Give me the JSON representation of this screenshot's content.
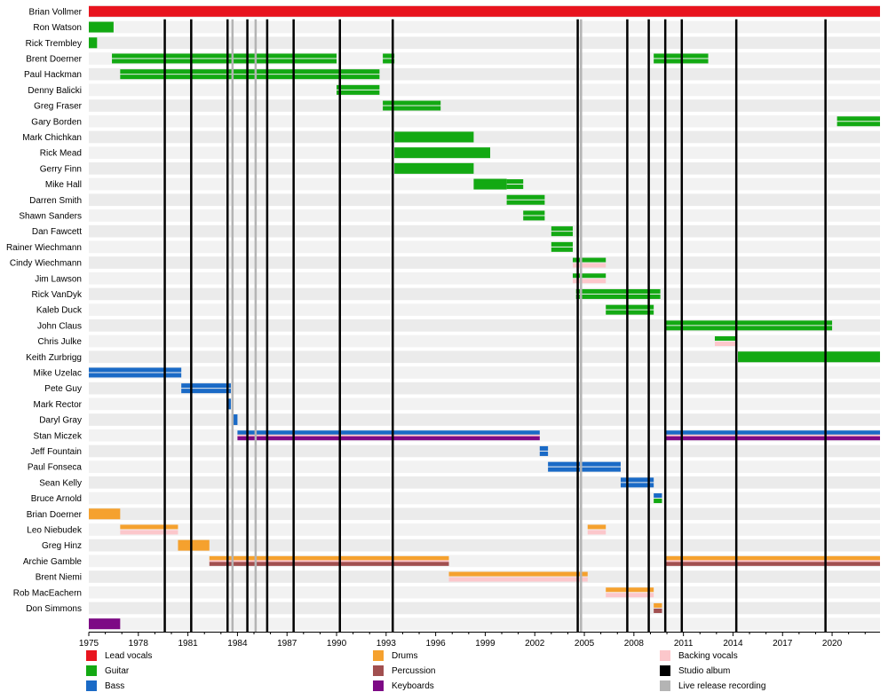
{
  "chart_data": {
    "type": "timeline",
    "x_axis": {
      "start": 1975,
      "end": 2022.9,
      "tick_start": 1975,
      "tick_step": 3,
      "tick_end": 2020
    },
    "roles": {
      "vocals": {
        "label": "Lead vocals",
        "color": "#e8141e"
      },
      "guitar": {
        "label": "Guitar",
        "color": "#13a913"
      },
      "bass": {
        "label": "Bass",
        "color": "#1a6ac6"
      },
      "drums": {
        "label": "Drums",
        "color": "#f5a12e"
      },
      "percussion": {
        "label": "Percussion",
        "color": "#a14f4f"
      },
      "keyboards": {
        "label": "Keyboards",
        "color": "#7d0a85"
      },
      "backing": {
        "label": "Backing vocals",
        "color": "#fcc7cb"
      },
      "studio": {
        "label": "Studio album",
        "color": "#000000"
      },
      "live": {
        "label": "Live release recording",
        "color": "#b4b4b4"
      }
    },
    "legend_columns": [
      [
        "vocals",
        "guitar",
        "bass"
      ],
      [
        "drums",
        "percussion",
        "keyboards"
      ],
      [
        "backing",
        "studio",
        "live"
      ]
    ],
    "studio_albums": [
      1979.6,
      1981.2,
      1983.4,
      1984.6,
      1985.8,
      1987.4,
      1990.2,
      1993.4,
      2004.6,
      2007.6,
      2008.9,
      2009.9,
      2010.9,
      2014.2,
      2019.6
    ],
    "live_recordings": [
      1983.7,
      1985.1,
      2004.8
    ],
    "members": [
      {
        "name": "Brian Vollmer",
        "periods": [
          {
            "start": 1975,
            "end": 2022.9,
            "role": "vocals"
          }
        ]
      },
      {
        "name": "Ron Watson",
        "periods": [
          {
            "start": 1975,
            "end": 1976.5,
            "role": "guitar"
          }
        ]
      },
      {
        "name": "Rick Trembley",
        "periods": [
          {
            "start": 1975,
            "end": 1975.5,
            "role": "guitar"
          }
        ]
      },
      {
        "name": "Brent Doerner",
        "periods": [
          {
            "start": 1976.4,
            "end": 1990,
            "role": "guitar",
            "secondary": "guitar"
          },
          {
            "start": 1992.8,
            "end": 1993.5,
            "role": "guitar",
            "secondary": "guitar"
          },
          {
            "start": 2009.2,
            "end": 2012.5,
            "role": "guitar",
            "secondary": "guitar"
          }
        ]
      },
      {
        "name": "Paul Hackman",
        "periods": [
          {
            "start": 1976.9,
            "end": 1992.6,
            "role": "guitar",
            "secondary": "guitar"
          }
        ]
      },
      {
        "name": "Denny Balicki",
        "periods": [
          {
            "start": 1990,
            "end": 1992.6,
            "role": "guitar",
            "secondary": "guitar"
          }
        ]
      },
      {
        "name": "Greg Fraser",
        "periods": [
          {
            "start": 1992.8,
            "end": 1996.3,
            "role": "guitar",
            "secondary": "guitar"
          }
        ]
      },
      {
        "name": "Gary Borden",
        "periods": [
          {
            "start": 2020.3,
            "end": 2022.9,
            "role": "guitar",
            "secondary": "guitar"
          }
        ]
      },
      {
        "name": "Mark Chichkan",
        "periods": [
          {
            "start": 1993.5,
            "end": 1998.3,
            "role": "guitar"
          }
        ]
      },
      {
        "name": "Rick Mead",
        "periods": [
          {
            "start": 1993.5,
            "end": 1999.3,
            "role": "guitar"
          }
        ]
      },
      {
        "name": "Gerry Finn",
        "periods": [
          {
            "start": 1993.5,
            "end": 1998.3,
            "role": "guitar"
          }
        ]
      },
      {
        "name": "Mike Hall",
        "periods": [
          {
            "start": 1998.3,
            "end": 2000.3,
            "role": "guitar"
          },
          {
            "start": 2000.3,
            "end": 2001.3,
            "role": "guitar",
            "secondary": "guitar"
          }
        ]
      },
      {
        "name": "Darren Smith",
        "periods": [
          {
            "start": 2000.3,
            "end": 2002.6,
            "role": "guitar",
            "secondary": "guitar"
          }
        ]
      },
      {
        "name": "Shawn Sanders",
        "periods": [
          {
            "start": 2001.3,
            "end": 2002.6,
            "role": "guitar",
            "secondary": "guitar"
          }
        ]
      },
      {
        "name": "Dan Fawcett",
        "periods": [
          {
            "start": 2003,
            "end": 2004.3,
            "role": "guitar",
            "secondary": "guitar"
          }
        ]
      },
      {
        "name": "Rainer Wiechmann",
        "periods": [
          {
            "start": 2003,
            "end": 2004.3,
            "role": "guitar",
            "secondary": "guitar"
          }
        ]
      },
      {
        "name": "Cindy Wiechmann",
        "periods": [
          {
            "start": 2004.3,
            "end": 2006.3,
            "role": "guitar",
            "secondary": "backing"
          }
        ]
      },
      {
        "name": "Jim Lawson",
        "periods": [
          {
            "start": 2004.3,
            "end": 2006.3,
            "role": "guitar",
            "secondary": "backing"
          }
        ]
      },
      {
        "name": "Rick VanDyk",
        "periods": [
          {
            "start": 2004.5,
            "end": 2009.6,
            "role": "guitar",
            "secondary": "guitar"
          }
        ]
      },
      {
        "name": "Kaleb Duck",
        "periods": [
          {
            "start": 2006.3,
            "end": 2009.2,
            "role": "guitar",
            "secondary": "guitar"
          }
        ]
      },
      {
        "name": "John Claus",
        "periods": [
          {
            "start": 2009.9,
            "end": 2020,
            "role": "guitar",
            "secondary": "guitar"
          }
        ]
      },
      {
        "name": "Chris Julke",
        "periods": [
          {
            "start": 2012.9,
            "end": 2014.2,
            "role": "guitar",
            "secondary": "backing"
          }
        ]
      },
      {
        "name": "Keith Zurbrigg",
        "periods": [
          {
            "start": 2014.3,
            "end": 2022.9,
            "role": "guitar"
          }
        ]
      },
      {
        "name": "Mike Uzelac",
        "periods": [
          {
            "start": 1975,
            "end": 1980.6,
            "role": "bass",
            "secondary": "bass"
          }
        ]
      },
      {
        "name": "Pete Guy",
        "periods": [
          {
            "start": 1980.6,
            "end": 1983.6,
            "role": "bass",
            "secondary": "bass"
          }
        ]
      },
      {
        "name": "Mark Rector",
        "periods": [
          {
            "start": 1983.4,
            "end": 1983.6,
            "role": "bass"
          }
        ]
      },
      {
        "name": "Daryl Gray",
        "periods": [
          {
            "start": 1983.7,
            "end": 1984,
            "role": "bass"
          }
        ]
      },
      {
        "name": "Stan Miczek",
        "periods": [
          {
            "start": 1984,
            "end": 2002.3,
            "role": "bass",
            "secondary": "keyboards",
            "accent": "backing"
          },
          {
            "start": 2009.9,
            "end": 2022.9,
            "role": "bass",
            "secondary": "keyboards",
            "accent": "backing"
          }
        ]
      },
      {
        "name": "Jeff Fountain",
        "periods": [
          {
            "start": 2002.3,
            "end": 2002.8,
            "role": "bass",
            "secondary": "bass"
          }
        ]
      },
      {
        "name": "Paul Fonseca",
        "periods": [
          {
            "start": 2002.8,
            "end": 2007.2,
            "role": "bass",
            "secondary": "bass"
          }
        ]
      },
      {
        "name": "Sean Kelly",
        "periods": [
          {
            "start": 2007.2,
            "end": 2009.2,
            "role": "bass",
            "secondary": "bass"
          }
        ]
      },
      {
        "name": "Bruce Arnold",
        "periods": [
          {
            "start": 2009.2,
            "end": 2009.7,
            "role": "bass",
            "secondary": "guitar"
          }
        ]
      },
      {
        "name": "Brian Doerner",
        "periods": [
          {
            "start": 1975,
            "end": 1976.9,
            "role": "drums"
          }
        ]
      },
      {
        "name": "Leo Niebudek",
        "periods": [
          {
            "start": 1976.9,
            "end": 1980.4,
            "role": "drums",
            "secondary": "backing"
          },
          {
            "start": 2005.2,
            "end": 2006.3,
            "role": "drums",
            "secondary": "backing"
          }
        ]
      },
      {
        "name": "Greg Hinz",
        "periods": [
          {
            "start": 1980.4,
            "end": 1982.3,
            "role": "drums"
          }
        ]
      },
      {
        "name": "Archie Gamble",
        "periods": [
          {
            "start": 1982.3,
            "end": 1996.8,
            "role": "drums",
            "secondary": "percussion",
            "accent": "backing"
          },
          {
            "start": 2009.9,
            "end": 2022.9,
            "role": "drums",
            "secondary": "percussion",
            "accent": "backing"
          }
        ]
      },
      {
        "name": "Brent Niemi",
        "periods": [
          {
            "start": 1996.8,
            "end": 2005.2,
            "role": "drums",
            "secondary": "backing_top"
          }
        ]
      },
      {
        "name": "Rob MacEachern",
        "periods": [
          {
            "start": 2006.3,
            "end": 2009.2,
            "role": "drums",
            "secondary": "backing"
          }
        ]
      },
      {
        "name": "Don Simmons",
        "periods": [
          {
            "start": 2009.2,
            "end": 2009.7,
            "role": "drums",
            "secondary": "percussion"
          }
        ]
      },
      {
        "name": "",
        "periods": [
          {
            "start": 1975,
            "end": 1976.9,
            "role": "keyboards"
          }
        ]
      }
    ]
  }
}
